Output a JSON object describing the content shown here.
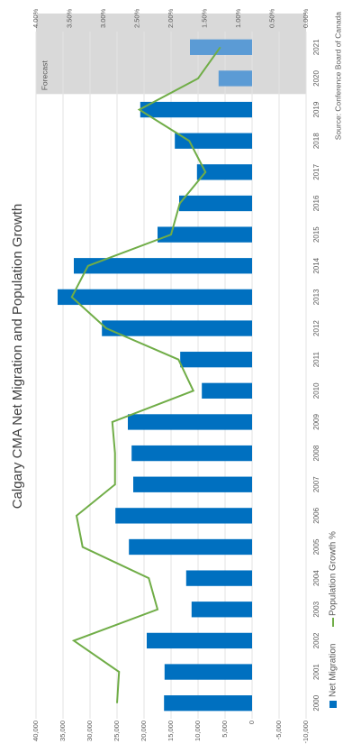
{
  "chart_data": {
    "type": "bar",
    "title": "Calgary CMA Net Migration and Population Growth",
    "categories": [
      "2000",
      "2001",
      "2002",
      "2003",
      "2004",
      "2005",
      "2006",
      "2007",
      "2008",
      "2009",
      "2010",
      "2011",
      "2012",
      "2013",
      "2014",
      "2015",
      "2016",
      "2017",
      "2018",
      "2019",
      "2020",
      "2021"
    ],
    "series": [
      {
        "name": "Net Migration",
        "type": "bar",
        "color": "#0070c0",
        "values": [
          16300,
          16200,
          19500,
          11200,
          12200,
          22800,
          25300,
          22000,
          22300,
          23000,
          9300,
          13300,
          27800,
          36000,
          33000,
          17500,
          13500,
          10200,
          14300,
          20700,
          6200,
          11500
        ]
      },
      {
        "name": "Population Growth %",
        "type": "line",
        "axis": "y2",
        "color": "#70ad47",
        "values": [
          2.8,
          2.77,
          3.44,
          2.2,
          2.33,
          3.31,
          3.4,
          2.83,
          2.83,
          2.87,
          1.67,
          1.89,
          2.96,
          3.47,
          3.23,
          2.0,
          1.87,
          1.49,
          1.73,
          2.47,
          1.6,
          1.27
        ]
      }
    ],
    "ylim": [
      -10000,
      40000
    ],
    "yticks": [
      {
        "value": -10000,
        "label": "-10,000"
      },
      {
        "value": -5000,
        "label": "-5,000"
      },
      0,
      {
        "value": 5000,
        "label": "5,000"
      },
      {
        "value": 10000,
        "label": "10,000"
      },
      {
        "value": 15000,
        "label": "15,000"
      },
      {
        "value": 20000,
        "label": "20,000"
      },
      {
        "value": 25000,
        "label": "25,000"
      },
      {
        "value": 30000,
        "label": "30,000"
      },
      {
        "value": 35000,
        "label": "35,000"
      },
      {
        "value": 40000,
        "label": "40,000"
      }
    ],
    "y2lim": [
      0,
      4
    ],
    "y2ticks": [
      {
        "value": 0,
        "label": "0.00%"
      },
      {
        "value": 0.5,
        "label": "0.50%"
      },
      {
        "value": 1,
        "label": "1.00%"
      },
      {
        "value": 1.5,
        "label": "1.50%"
      },
      {
        "value": 2,
        "label": "2.00%"
      },
      {
        "value": 2.5,
        "label": "2.50%"
      },
      {
        "value": 3,
        "label": "3.00%"
      },
      {
        "value": 3.5,
        "label": "3.50%"
      },
      {
        "value": 4,
        "label": "4.00%"
      }
    ],
    "forecast": {
      "label": "Forecast",
      "from": "2020",
      "color": "#5b9bd5"
    },
    "source": "Source: Conference Board of Canada",
    "grid": true,
    "legend": "bottom"
  }
}
